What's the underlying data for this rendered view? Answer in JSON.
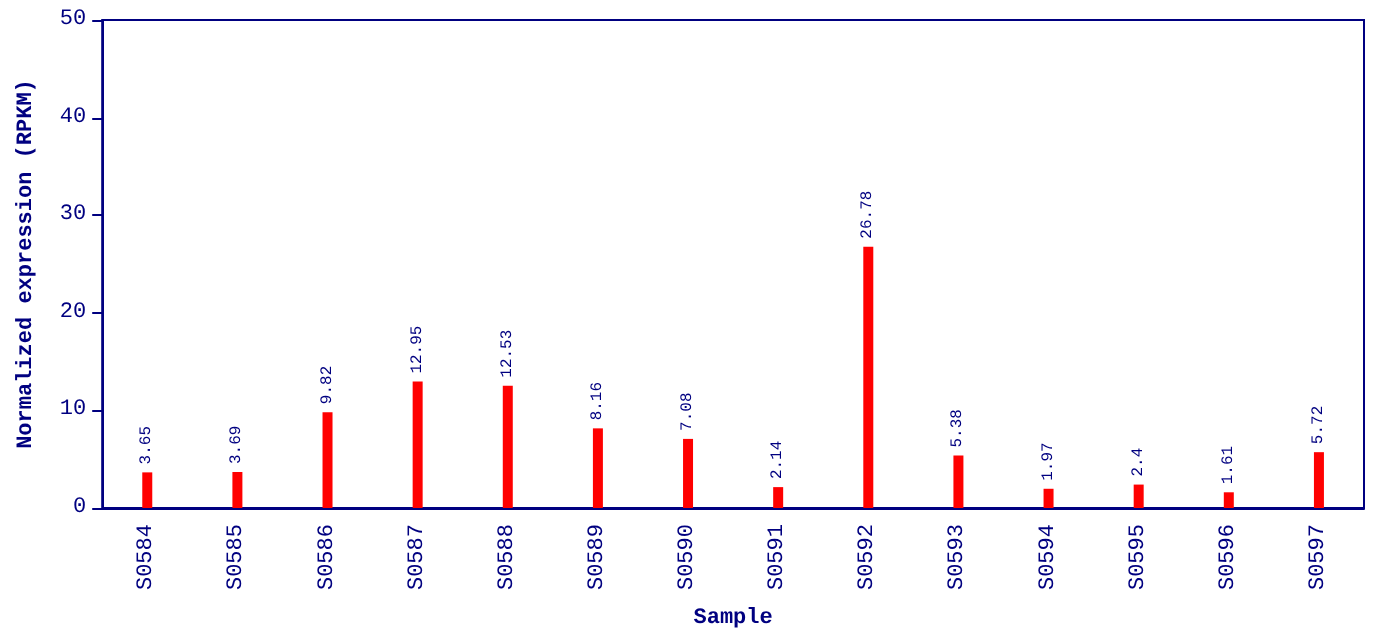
{
  "chart_data": {
    "type": "bar",
    "xlabel": "Sample",
    "ylabel": "Normalized expression (RPKM)",
    "categories": [
      "S0584",
      "S0585",
      "S0586",
      "S0587",
      "S0588",
      "S0589",
      "S0590",
      "S0591",
      "S0592",
      "S0593",
      "S0594",
      "S0595",
      "S0596",
      "S0597"
    ],
    "values": [
      3.65,
      3.69,
      9.82,
      12.95,
      12.53,
      8.16,
      7.08,
      2.14,
      26.78,
      5.38,
      1.97,
      2.4,
      1.61,
      5.72
    ],
    "color": "#ff0000",
    "ylim": [
      0,
      50
    ],
    "yticks": [
      0,
      10,
      20,
      30,
      40,
      50
    ],
    "data_labels": true
  }
}
